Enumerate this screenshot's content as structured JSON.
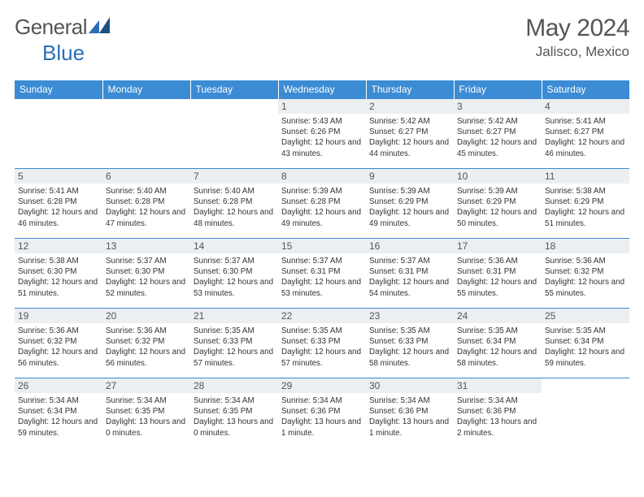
{
  "brand": {
    "part1": "General",
    "part2": "Blue"
  },
  "title": "May 2024",
  "location": "Jalisco, Mexico",
  "colors": {
    "header_bg": "#3b8cd4",
    "header_text": "#ffffff",
    "daynum_bg": "#eceff1",
    "border": "#3b8cd4",
    "text": "#333333",
    "muted_text": "#555555"
  },
  "days_of_week": [
    "Sunday",
    "Monday",
    "Tuesday",
    "Wednesday",
    "Thursday",
    "Friday",
    "Saturday"
  ],
  "weeks": [
    [
      null,
      null,
      null,
      {
        "n": "1",
        "sr": "5:43 AM",
        "ss": "6:26 PM",
        "dl": "12 hours and 43 minutes."
      },
      {
        "n": "2",
        "sr": "5:42 AM",
        "ss": "6:27 PM",
        "dl": "12 hours and 44 minutes."
      },
      {
        "n": "3",
        "sr": "5:42 AM",
        "ss": "6:27 PM",
        "dl": "12 hours and 45 minutes."
      },
      {
        "n": "4",
        "sr": "5:41 AM",
        "ss": "6:27 PM",
        "dl": "12 hours and 46 minutes."
      }
    ],
    [
      {
        "n": "5",
        "sr": "5:41 AM",
        "ss": "6:28 PM",
        "dl": "12 hours and 46 minutes."
      },
      {
        "n": "6",
        "sr": "5:40 AM",
        "ss": "6:28 PM",
        "dl": "12 hours and 47 minutes."
      },
      {
        "n": "7",
        "sr": "5:40 AM",
        "ss": "6:28 PM",
        "dl": "12 hours and 48 minutes."
      },
      {
        "n": "8",
        "sr": "5:39 AM",
        "ss": "6:28 PM",
        "dl": "12 hours and 49 minutes."
      },
      {
        "n": "9",
        "sr": "5:39 AM",
        "ss": "6:29 PM",
        "dl": "12 hours and 49 minutes."
      },
      {
        "n": "10",
        "sr": "5:39 AM",
        "ss": "6:29 PM",
        "dl": "12 hours and 50 minutes."
      },
      {
        "n": "11",
        "sr": "5:38 AM",
        "ss": "6:29 PM",
        "dl": "12 hours and 51 minutes."
      }
    ],
    [
      {
        "n": "12",
        "sr": "5:38 AM",
        "ss": "6:30 PM",
        "dl": "12 hours and 51 minutes."
      },
      {
        "n": "13",
        "sr": "5:37 AM",
        "ss": "6:30 PM",
        "dl": "12 hours and 52 minutes."
      },
      {
        "n": "14",
        "sr": "5:37 AM",
        "ss": "6:30 PM",
        "dl": "12 hours and 53 minutes."
      },
      {
        "n": "15",
        "sr": "5:37 AM",
        "ss": "6:31 PM",
        "dl": "12 hours and 53 minutes."
      },
      {
        "n": "16",
        "sr": "5:37 AM",
        "ss": "6:31 PM",
        "dl": "12 hours and 54 minutes."
      },
      {
        "n": "17",
        "sr": "5:36 AM",
        "ss": "6:31 PM",
        "dl": "12 hours and 55 minutes."
      },
      {
        "n": "18",
        "sr": "5:36 AM",
        "ss": "6:32 PM",
        "dl": "12 hours and 55 minutes."
      }
    ],
    [
      {
        "n": "19",
        "sr": "5:36 AM",
        "ss": "6:32 PM",
        "dl": "12 hours and 56 minutes."
      },
      {
        "n": "20",
        "sr": "5:36 AM",
        "ss": "6:32 PM",
        "dl": "12 hours and 56 minutes."
      },
      {
        "n": "21",
        "sr": "5:35 AM",
        "ss": "6:33 PM",
        "dl": "12 hours and 57 minutes."
      },
      {
        "n": "22",
        "sr": "5:35 AM",
        "ss": "6:33 PM",
        "dl": "12 hours and 57 minutes."
      },
      {
        "n": "23",
        "sr": "5:35 AM",
        "ss": "6:33 PM",
        "dl": "12 hours and 58 minutes."
      },
      {
        "n": "24",
        "sr": "5:35 AM",
        "ss": "6:34 PM",
        "dl": "12 hours and 58 minutes."
      },
      {
        "n": "25",
        "sr": "5:35 AM",
        "ss": "6:34 PM",
        "dl": "12 hours and 59 minutes."
      }
    ],
    [
      {
        "n": "26",
        "sr": "5:34 AM",
        "ss": "6:34 PM",
        "dl": "12 hours and 59 minutes."
      },
      {
        "n": "27",
        "sr": "5:34 AM",
        "ss": "6:35 PM",
        "dl": "13 hours and 0 minutes."
      },
      {
        "n": "28",
        "sr": "5:34 AM",
        "ss": "6:35 PM",
        "dl": "13 hours and 0 minutes."
      },
      {
        "n": "29",
        "sr": "5:34 AM",
        "ss": "6:36 PM",
        "dl": "13 hours and 1 minute."
      },
      {
        "n": "30",
        "sr": "5:34 AM",
        "ss": "6:36 PM",
        "dl": "13 hours and 1 minute."
      },
      {
        "n": "31",
        "sr": "5:34 AM",
        "ss": "6:36 PM",
        "dl": "13 hours and 2 minutes."
      },
      null
    ]
  ],
  "labels": {
    "sunrise": "Sunrise:",
    "sunset": "Sunset:",
    "daylight": "Daylight:"
  }
}
